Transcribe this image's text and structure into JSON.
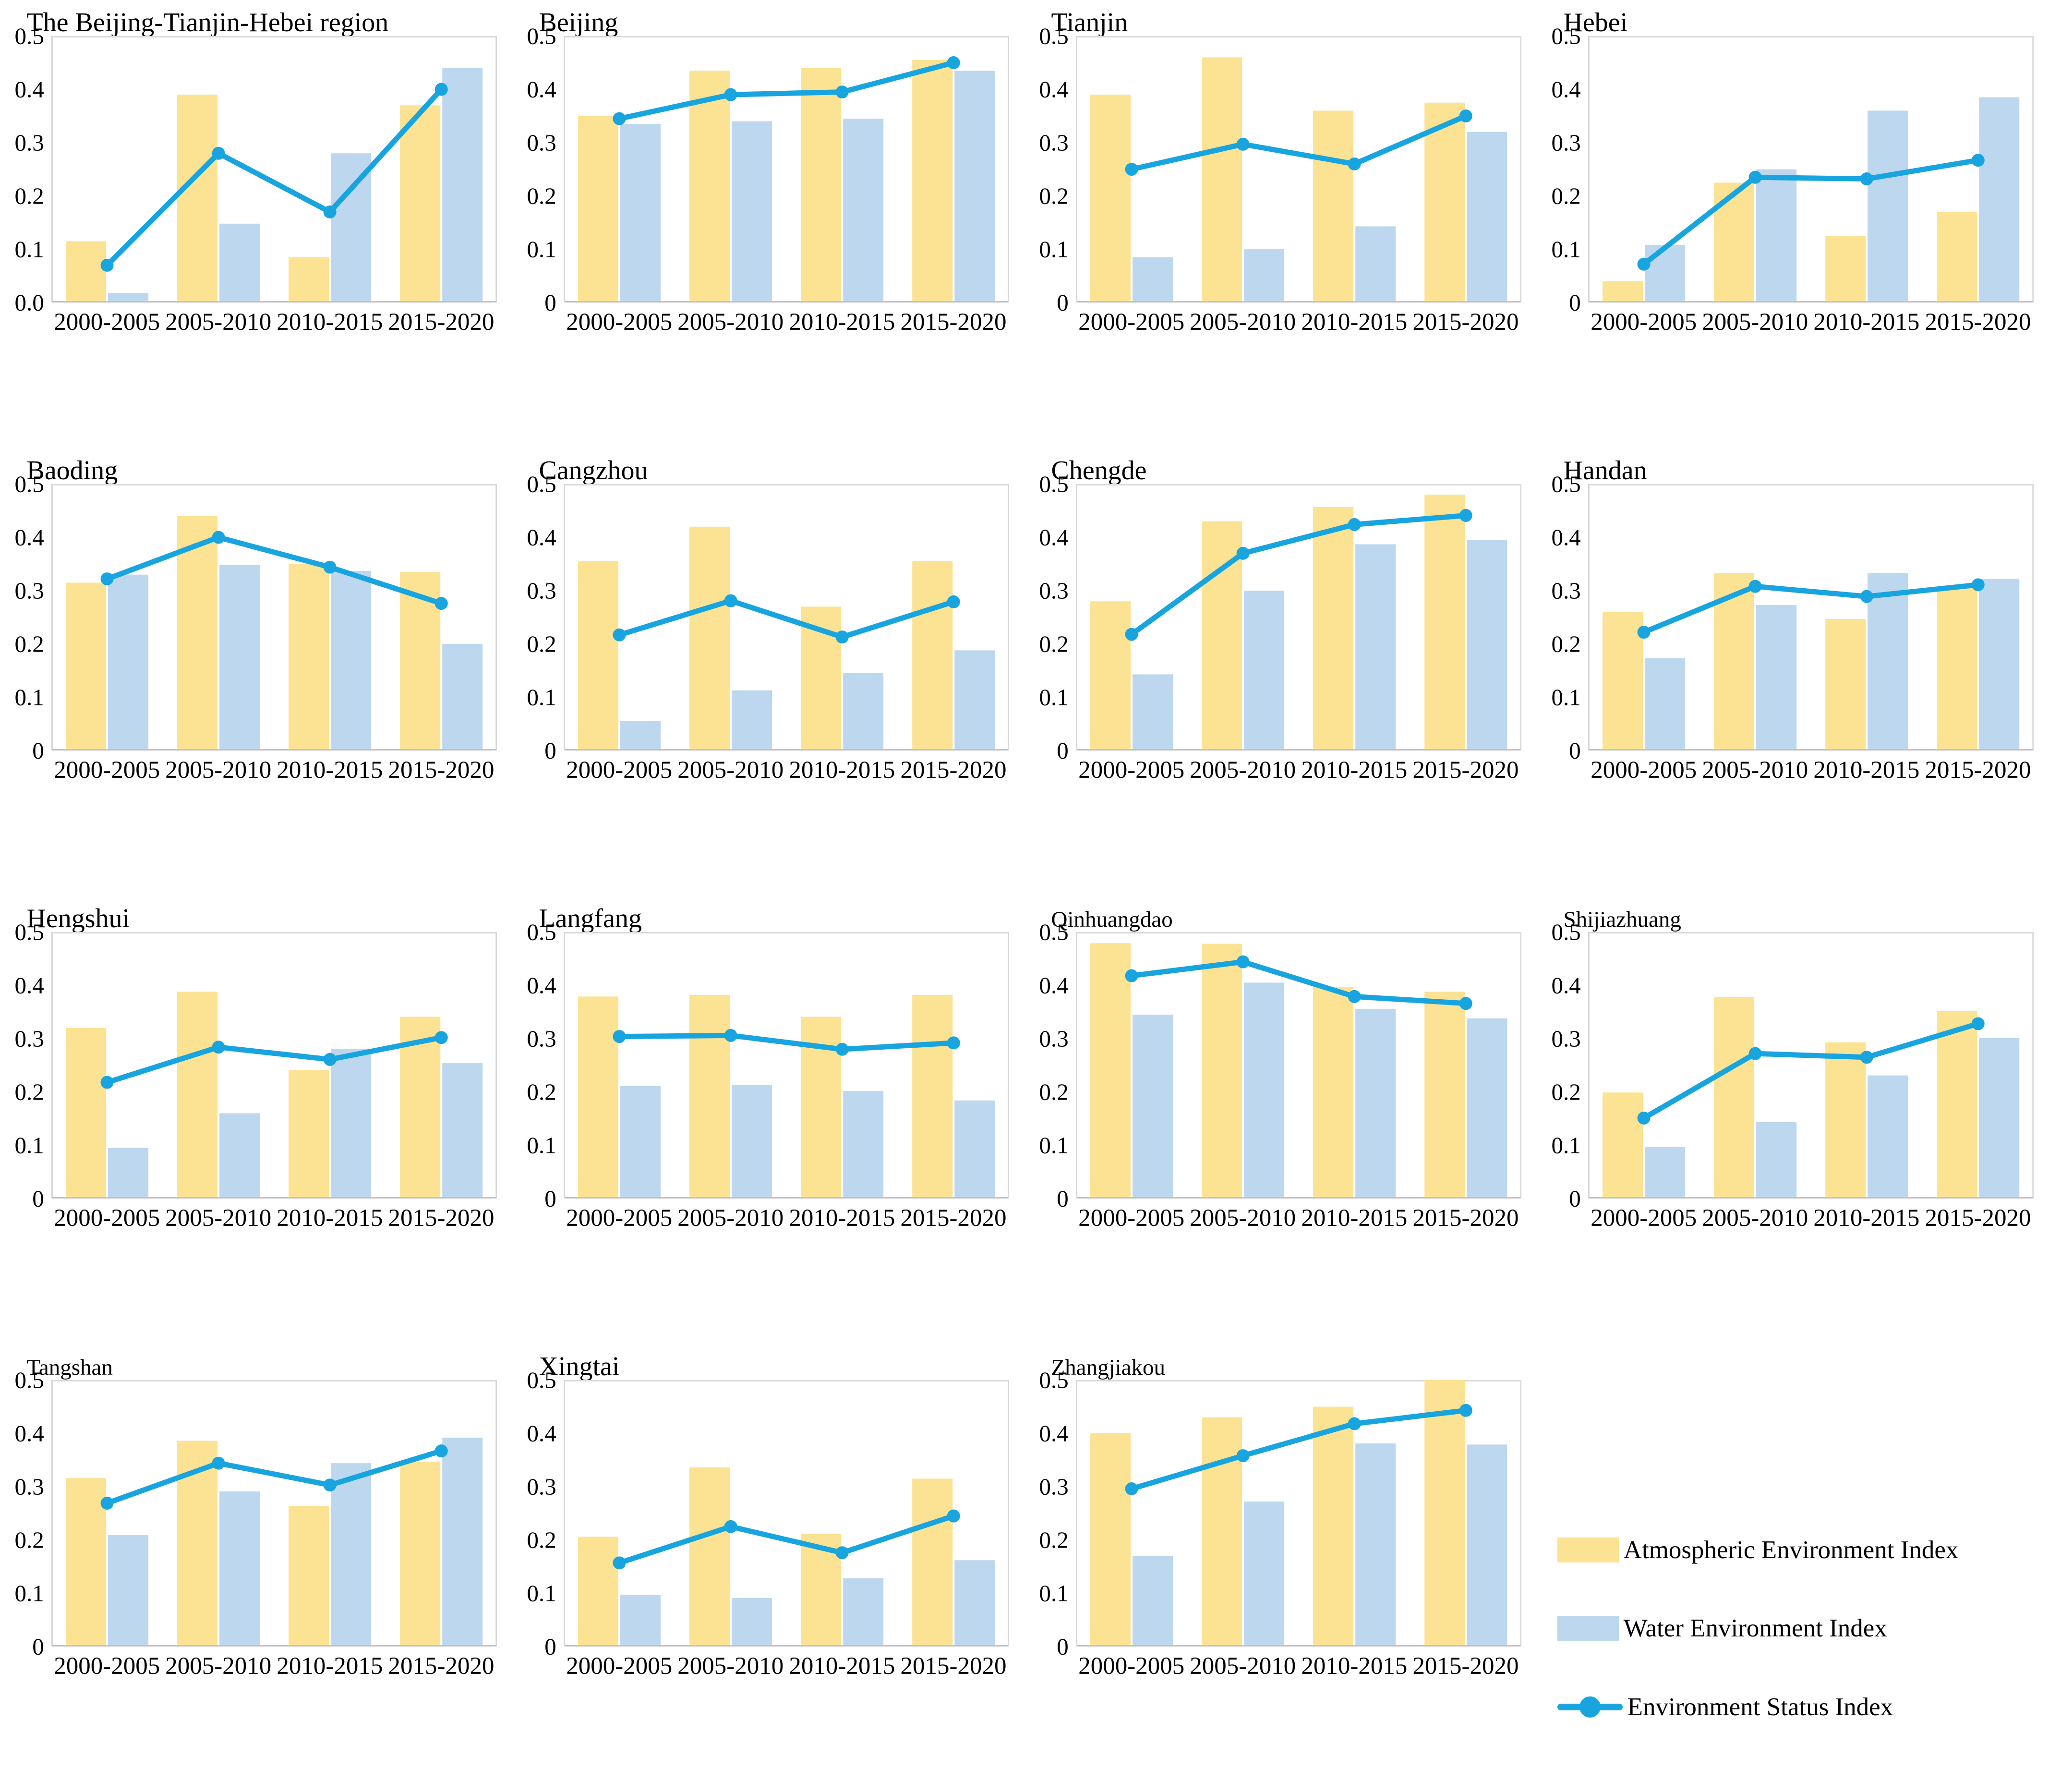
{
  "page": {
    "background": "#FFFFFF"
  },
  "colors": {
    "atmospheric_bar": "#FCE293",
    "water_bar": "#BDD7EE",
    "status_line": "#18A5DF",
    "plot_border": "#D8D8D8",
    "axis_line": "#BFBFBF",
    "text": "#000000"
  },
  "legend": {
    "items": [
      {
        "label": "Atmospheric Environment Index",
        "swatch": "yellow-bar-swatch"
      },
      {
        "label": "Water Environment Index",
        "swatch": "blue-bar-swatch"
      },
      {
        "label": "Environment Status Index",
        "swatch": "cyan-line-marker-swatch"
      }
    ]
  },
  "chart_data": [
    {
      "type": "bar+line",
      "title": "The Beijing-Tianjin-Hebei region",
      "categories": [
        "2000-2005",
        "2005-2010",
        "2010-2015",
        "2015-2020"
      ],
      "ylim": [
        0,
        0.5
      ],
      "y_ticks": [
        "0.0",
        "0.1",
        "0.2",
        "0.3",
        "0.4",
        "0.5"
      ],
      "series": [
        {
          "name": "Atmospheric Environment Index",
          "type": "bar",
          "values": [
            0.115,
            0.39,
            0.085,
            0.37
          ]
        },
        {
          "name": "Water Environment Index",
          "type": "bar",
          "values": [
            0.018,
            0.148,
            0.28,
            0.44
          ]
        },
        {
          "name": "Environment Status Index",
          "type": "line",
          "values": [
            0.07,
            0.28,
            0.17,
            0.4
          ]
        }
      ]
    },
    {
      "type": "bar+line",
      "title": "Beijing",
      "categories": [
        "2000-2005",
        "2005-2010",
        "2010-2015",
        "2015-2020"
      ],
      "ylim": [
        0,
        0.5
      ],
      "y_ticks": [
        "0",
        "0.1",
        "0.2",
        "0.3",
        "0.4",
        "0.5"
      ],
      "series": [
        {
          "name": "Atmospheric Environment Index",
          "type": "bar",
          "values": [
            0.35,
            0.435,
            0.44,
            0.455
          ]
        },
        {
          "name": "Water Environment Index",
          "type": "bar",
          "values": [
            0.335,
            0.34,
            0.345,
            0.435
          ]
        },
        {
          "name": "Environment Status Index",
          "type": "line",
          "values": [
            0.345,
            0.39,
            0.395,
            0.45
          ]
        }
      ]
    },
    {
      "type": "bar+line",
      "title": "Tianjin",
      "categories": [
        "2000-2005",
        "2005-2010",
        "2010-2015",
        "2015-2020"
      ],
      "ylim": [
        0,
        0.5
      ],
      "y_ticks": [
        "0",
        "0.1",
        "0.2",
        "0.3",
        "0.4",
        "0.5"
      ],
      "series": [
        {
          "name": "Atmospheric Environment Index",
          "type": "bar",
          "values": [
            0.39,
            0.46,
            0.36,
            0.375
          ]
        },
        {
          "name": "Water Environment Index",
          "type": "bar",
          "values": [
            0.085,
            0.1,
            0.143,
            0.32
          ]
        },
        {
          "name": "Environment Status Index",
          "type": "line",
          "values": [
            0.25,
            0.297,
            0.26,
            0.35
          ]
        }
      ]
    },
    {
      "type": "bar+line",
      "title": "Hebei",
      "categories": [
        "2000-2005",
        "2005-2010",
        "2010-2015",
        "2015-2020"
      ],
      "ylim": [
        0,
        0.5
      ],
      "y_ticks": [
        "0",
        "0.1",
        "0.2",
        "0.3",
        "0.4",
        "0.5"
      ],
      "series": [
        {
          "name": "Atmospheric Environment Index",
          "type": "bar",
          "values": [
            0.04,
            0.225,
            0.125,
            0.17
          ]
        },
        {
          "name": "Water Environment Index",
          "type": "bar",
          "values": [
            0.108,
            0.25,
            0.36,
            0.385
          ]
        },
        {
          "name": "Environment Status Index",
          "type": "line",
          "values": [
            0.072,
            0.235,
            0.232,
            0.267
          ]
        }
      ]
    },
    {
      "type": "bar+line",
      "title": "Baoding",
      "categories": [
        "2000-2005",
        "2005-2010",
        "2010-2015",
        "2015-2020"
      ],
      "ylim": [
        0,
        0.5
      ],
      "y_ticks": [
        "0",
        "0.1",
        "0.2",
        "0.3",
        "0.4",
        "0.5"
      ],
      "series": [
        {
          "name": "Atmospheric Environment Index",
          "type": "bar",
          "values": [
            0.315,
            0.44,
            0.35,
            0.335
          ]
        },
        {
          "name": "Water Environment Index",
          "type": "bar",
          "values": [
            0.33,
            0.348,
            0.337,
            0.2
          ]
        },
        {
          "name": "Environment Status Index",
          "type": "line",
          "values": [
            0.322,
            0.4,
            0.344,
            0.276
          ]
        }
      ]
    },
    {
      "type": "bar+line",
      "title": "Cangzhou",
      "categories": [
        "2000-2005",
        "2005-2010",
        "2010-2015",
        "2015-2020"
      ],
      "ylim": [
        0,
        0.5
      ],
      "y_ticks": [
        "0",
        "0.1",
        "0.2",
        "0.3",
        "0.4",
        "0.5"
      ],
      "series": [
        {
          "name": "Atmospheric Environment Index",
          "type": "bar",
          "values": [
            0.355,
            0.42,
            0.27,
            0.355
          ]
        },
        {
          "name": "Water Environment Index",
          "type": "bar",
          "values": [
            0.055,
            0.113,
            0.146,
            0.188
          ]
        },
        {
          "name": "Environment Status Index",
          "type": "line",
          "values": [
            0.217,
            0.281,
            0.213,
            0.279
          ]
        }
      ]
    },
    {
      "type": "bar+line",
      "title": "Chengde",
      "categories": [
        "2000-2005",
        "2005-2010",
        "2010-2015",
        "2015-2020"
      ],
      "ylim": [
        0,
        0.5
      ],
      "y_ticks": [
        "0",
        "0.1",
        "0.2",
        "0.3",
        "0.4",
        "0.5"
      ],
      "series": [
        {
          "name": "Atmospheric Environment Index",
          "type": "bar",
          "values": [
            0.28,
            0.43,
            0.457,
            0.48
          ]
        },
        {
          "name": "Water Environment Index",
          "type": "bar",
          "values": [
            0.143,
            0.3,
            0.387,
            0.395
          ]
        },
        {
          "name": "Environment Status Index",
          "type": "line",
          "values": [
            0.218,
            0.37,
            0.424,
            0.441
          ]
        }
      ]
    },
    {
      "type": "bar+line",
      "title": "Handan",
      "categories": [
        "2000-2005",
        "2005-2010",
        "2010-2015",
        "2015-2020"
      ],
      "ylim": [
        0,
        0.5
      ],
      "y_ticks": [
        "0",
        "0.1",
        "0.2",
        "0.3",
        "0.4",
        "0.5"
      ],
      "series": [
        {
          "name": "Atmospheric Environment Index",
          "type": "bar",
          "values": [
            0.26,
            0.333,
            0.247,
            0.307
          ]
        },
        {
          "name": "Water Environment Index",
          "type": "bar",
          "values": [
            0.173,
            0.273,
            0.333,
            0.322
          ]
        },
        {
          "name": "Environment Status Index",
          "type": "line",
          "values": [
            0.222,
            0.308,
            0.289,
            0.311
          ]
        }
      ]
    },
    {
      "type": "bar+line",
      "title": "Hengshui",
      "categories": [
        "2000-2005",
        "2005-2010",
        "2010-2015",
        "2015-2020"
      ],
      "ylim": [
        0,
        0.5
      ],
      "y_ticks": [
        "0",
        "0.1",
        "0.2",
        "0.3",
        "0.4",
        "0.5"
      ],
      "series": [
        {
          "name": "Atmospheric Environment Index",
          "type": "bar",
          "values": [
            0.32,
            0.388,
            0.241,
            0.341
          ]
        },
        {
          "name": "Water Environment Index",
          "type": "bar",
          "values": [
            0.095,
            0.16,
            0.281,
            0.254
          ]
        },
        {
          "name": "Environment Status Index",
          "type": "line",
          "values": [
            0.218,
            0.284,
            0.261,
            0.302
          ]
        }
      ]
    },
    {
      "type": "bar+line",
      "title": "Langfang",
      "categories": [
        "2000-2005",
        "2005-2010",
        "2010-2015",
        "2015-2020"
      ],
      "ylim": [
        0,
        0.5
      ],
      "y_ticks": [
        "0",
        "0.1",
        "0.2",
        "0.3",
        "0.4",
        "0.5"
      ],
      "series": [
        {
          "name": "Atmospheric Environment Index",
          "type": "bar",
          "values": [
            0.379,
            0.382,
            0.341,
            0.382
          ]
        },
        {
          "name": "Water Environment Index",
          "type": "bar",
          "values": [
            0.211,
            0.213,
            0.202,
            0.184
          ]
        },
        {
          "name": "Environment Status Index",
          "type": "line",
          "values": [
            0.304,
            0.306,
            0.28,
            0.292
          ]
        }
      ]
    },
    {
      "type": "bar+line",
      "title": "Qinhuangdao",
      "categories": [
        "2000-2005",
        "2005-2010",
        "2010-2015",
        "2015-2020"
      ],
      "ylim": [
        0,
        0.5
      ],
      "y_ticks": [
        "0",
        "0.1",
        "0.2",
        "0.3",
        "0.4",
        "0.5"
      ],
      "series": [
        {
          "name": "Atmospheric Environment Index",
          "type": "bar",
          "values": [
            0.479,
            0.478,
            0.397,
            0.388
          ]
        },
        {
          "name": "Water Environment Index",
          "type": "bar",
          "values": [
            0.345,
            0.405,
            0.356,
            0.338
          ]
        },
        {
          "name": "Environment Status Index",
          "type": "line",
          "values": [
            0.418,
            0.444,
            0.379,
            0.366
          ]
        }
      ]
    },
    {
      "type": "bar+line",
      "title": "Shijiazhuang",
      "categories": [
        "2000-2005",
        "2005-2010",
        "2010-2015",
        "2015-2020"
      ],
      "ylim": [
        0,
        0.5
      ],
      "y_ticks": [
        "0",
        "0.1",
        "0.2",
        "0.3",
        "0.4",
        "0.5"
      ],
      "series": [
        {
          "name": "Atmospheric Environment Index",
          "type": "bar",
          "values": [
            0.199,
            0.378,
            0.293,
            0.352
          ]
        },
        {
          "name": "Water Environment Index",
          "type": "bar",
          "values": [
            0.097,
            0.144,
            0.231,
            0.301
          ]
        },
        {
          "name": "Environment Status Index",
          "type": "line",
          "values": [
            0.151,
            0.272,
            0.265,
            0.328
          ]
        }
      ]
    },
    {
      "type": "bar+line",
      "title": "Tangshan",
      "categories": [
        "2000-2005",
        "2005-2010",
        "2010-2015",
        "2015-2020"
      ],
      "ylim": [
        0,
        0.5
      ],
      "y_ticks": [
        "0",
        "0.1",
        "0.2",
        "0.3",
        "0.4",
        "0.5"
      ],
      "series": [
        {
          "name": "Atmospheric Environment Index",
          "type": "bar",
          "values": [
            0.316,
            0.386,
            0.264,
            0.347
          ]
        },
        {
          "name": "Water Environment Index",
          "type": "bar",
          "values": [
            0.209,
            0.291,
            0.344,
            0.392
          ]
        },
        {
          "name": "Environment Status Index",
          "type": "line",
          "values": [
            0.269,
            0.344,
            0.303,
            0.367
          ]
        }
      ]
    },
    {
      "type": "bar+line",
      "title": "Xingtai",
      "categories": [
        "2000-2005",
        "2005-2010",
        "2010-2015",
        "2015-2020"
      ],
      "ylim": [
        0,
        0.5
      ],
      "y_ticks": [
        "0",
        "0.1",
        "0.2",
        "0.3",
        "0.4",
        "0.5"
      ],
      "series": [
        {
          "name": "Atmospheric Environment Index",
          "type": "bar",
          "values": [
            0.206,
            0.336,
            0.211,
            0.315
          ]
        },
        {
          "name": "Water Environment Index",
          "type": "bar",
          "values": [
            0.097,
            0.091,
            0.128,
            0.162
          ]
        },
        {
          "name": "Environment Status Index",
          "type": "line",
          "values": [
            0.157,
            0.225,
            0.176,
            0.245
          ]
        }
      ]
    },
    {
      "type": "bar+line",
      "title": "Zhangjiakou",
      "categories": [
        "2000-2005",
        "2005-2010",
        "2010-2015",
        "2015-2020"
      ],
      "ylim": [
        0,
        0.5
      ],
      "y_ticks": [
        "0",
        "0.1",
        "0.2",
        "0.3",
        "0.4",
        "0.5"
      ],
      "series": [
        {
          "name": "Atmospheric Environment Index",
          "type": "bar",
          "values": [
            0.4,
            0.43,
            0.45,
            0.5
          ]
        },
        {
          "name": "Water Environment Index",
          "type": "bar",
          "values": [
            0.17,
            0.272,
            0.381,
            0.379
          ]
        },
        {
          "name": "Environment Status Index",
          "type": "line",
          "values": [
            0.296,
            0.358,
            0.418,
            0.443
          ]
        }
      ]
    }
  ]
}
